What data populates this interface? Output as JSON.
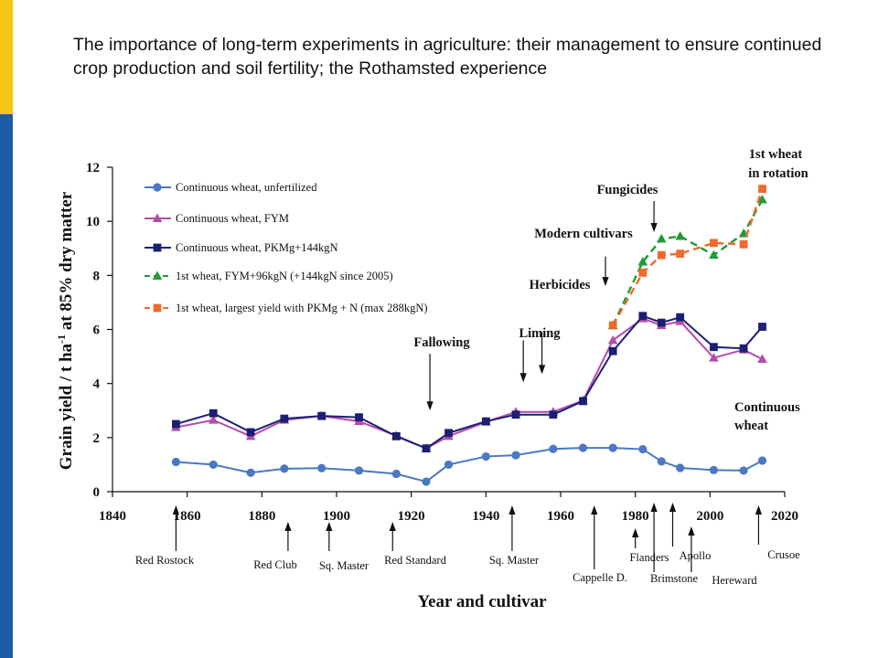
{
  "slide": {
    "title": "The importance of long-term experiments in agriculture: their management to ensure continued crop production and soil fertility; the Rothamsted experience"
  },
  "colors": {
    "yellow_bar": "#f5c518",
    "blue_bar": "#1f5aa6",
    "unfertilized": "#4a78c2",
    "fym": "#b44cab",
    "pkmg": "#1c1f72",
    "rotation_fym": "#1f9a38",
    "rotation_pkmg": "#ec6b2d"
  },
  "chart_data": {
    "type": "line",
    "xlabel": "Year and cultivar",
    "ylabel_main": "Grain yield / t ha",
    "ylabel_sup": "-1",
    "ylabel_rest": " at 85% dry matter",
    "xlim": [
      1840,
      2020
    ],
    "ylim": [
      0,
      12
    ],
    "xticks": [
      1840,
      1860,
      1880,
      1900,
      1920,
      1940,
      1960,
      1980,
      2000,
      2020
    ],
    "yticks": [
      0,
      2,
      4,
      6,
      8,
      10,
      12
    ],
    "legend_position": "top-left",
    "series": [
      {
        "name": "Continuous wheat, unfertilized",
        "marker": "circle",
        "dashed": false,
        "color": "#4a78c2",
        "x": [
          1857,
          1867,
          1877,
          1886,
          1896,
          1906,
          1916,
          1924,
          1930,
          1940,
          1948,
          1958,
          1966,
          1974,
          1982,
          1987,
          1992,
          2001,
          2009,
          2014
        ],
        "y": [
          1.1,
          1.0,
          0.7,
          0.85,
          0.87,
          0.78,
          0.66,
          0.37,
          1.0,
          1.3,
          1.35,
          1.58,
          1.62,
          1.62,
          1.57,
          1.12,
          0.88,
          0.8,
          0.78,
          1.15
        ]
      },
      {
        "name": "Continuous wheat, FYM",
        "marker": "triangle",
        "dashed": false,
        "color": "#b44cab",
        "x": [
          1857,
          1867,
          1877,
          1886,
          1896,
          1906,
          1916,
          1924,
          1930,
          1940,
          1948,
          1958,
          1966,
          1974,
          1982,
          1987,
          1992,
          2001,
          2009,
          2014
        ],
        "y": [
          2.38,
          2.65,
          2.05,
          2.65,
          2.8,
          2.6,
          2.07,
          1.6,
          2.05,
          2.58,
          2.95,
          2.95,
          3.37,
          5.6,
          6.4,
          6.15,
          6.3,
          4.95,
          5.25,
          4.9
        ]
      },
      {
        "name": "Continuous wheat, PKMg+144kgN",
        "marker": "square",
        "dashed": false,
        "color": "#1c1f72",
        "x": [
          1857,
          1867,
          1877,
          1886,
          1896,
          1906,
          1916,
          1924,
          1930,
          1940,
          1948,
          1958,
          1966,
          1974,
          1982,
          1987,
          1992,
          2001,
          2009,
          2014
        ],
        "y": [
          2.5,
          2.9,
          2.2,
          2.7,
          2.8,
          2.75,
          2.05,
          1.6,
          2.17,
          2.6,
          2.85,
          2.85,
          3.35,
          5.2,
          6.5,
          6.25,
          6.45,
          5.35,
          5.3,
          6.1
        ]
      },
      {
        "name": "1st wheat, FYM+96kgN (+144kgN since 2005)",
        "marker": "triangle",
        "dashed": true,
        "color": "#1f9a38",
        "x": [
          1974,
          1982,
          1987,
          1992,
          2001,
          2009,
          2014
        ],
        "y": [
          6.15,
          8.5,
          9.35,
          9.45,
          8.75,
          9.55,
          10.8
        ]
      },
      {
        "name": "1st wheat, largest yield with PKMg + N (max 288kgN)",
        "marker": "square",
        "dashed": true,
        "color": "#ec6b2d",
        "x": [
          1974,
          1982,
          1987,
          1992,
          2001,
          2009,
          2014
        ],
        "y": [
          6.15,
          8.1,
          8.75,
          8.8,
          9.2,
          9.15,
          11.2
        ]
      }
    ],
    "cultivars": [
      {
        "name": "Red Rostock",
        "year": 1857
      },
      {
        "name": "Red Club",
        "year": 1887
      },
      {
        "name": "Sq. Master",
        "year": 1898
      },
      {
        "name": "Red Standard",
        "year": 1915
      },
      {
        "name": "Sq. Master",
        "year": 1947
      },
      {
        "name": "Cappelle D.",
        "year": 1969
      },
      {
        "name": "Flanders",
        "year": 1980
      },
      {
        "name": "Brimstone",
        "year": 1985
      },
      {
        "name": "Apollo",
        "year": 1990
      },
      {
        "name": "Hereward",
        "year": 1995
      },
      {
        "name": "Crusoe",
        "year": 2013
      }
    ],
    "annotations": [
      {
        "text": "Fallowing",
        "year": 1925,
        "arrow_from": 5.1,
        "arrow_to": 3.0
      },
      {
        "text": "Liming",
        "year": 1950,
        "arrow_from": 5.6,
        "arrow_to": 4.05
      },
      {
        "text": "Herbicides",
        "year": 1955,
        "arrow_from": 5.9,
        "arrow_to": 4.35
      },
      {
        "text": "Modern cultivars",
        "year": 1972,
        "arrow_from": 8.7,
        "arrow_to": 7.6
      },
      {
        "text": "Fungicides",
        "year": 1985,
        "arrow_from": 10.75,
        "arrow_to": 9.6
      },
      {
        "text": "1st wheat",
        "year": 2010,
        "arrow_from": null,
        "arrow_to": null
      },
      {
        "text": "in rotation",
        "year": 2010,
        "arrow_from": null,
        "arrow_to": null
      },
      {
        "text": "Continuous",
        "year": 2003,
        "arrow_from": null,
        "arrow_to": null
      },
      {
        "text": "wheat",
        "year": 2003,
        "arrow_from": null,
        "arrow_to": null
      }
    ]
  }
}
